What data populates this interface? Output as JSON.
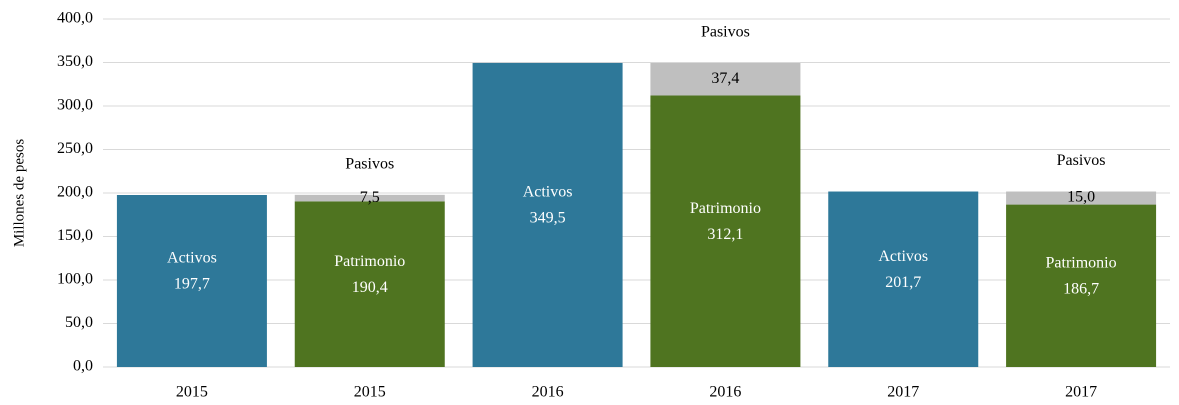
{
  "chart_data": {
    "type": "stacked_bar",
    "ylabel": "Millones  de pesos",
    "categories": [
      "2015",
      "2015",
      "2016",
      "2016",
      "2017",
      "2017"
    ],
    "series": [
      {
        "name": "Activos",
        "color": "#2e7899",
        "values": [
          197.7,
          null,
          349.5,
          null,
          201.7,
          null
        ],
        "value_labels": [
          "197,7",
          null,
          "349,5",
          null,
          "201,7",
          null
        ]
      },
      {
        "name": "Patrimonio",
        "color": "#4f7420",
        "values": [
          null,
          190.4,
          null,
          312.1,
          null,
          186.7
        ],
        "value_labels": [
          null,
          "190,4",
          null,
          "312,1",
          null,
          "186,7"
        ]
      },
      {
        "name": "Pasivos",
        "color": "#bfbfbf",
        "values": [
          null,
          7.5,
          null,
          37.4,
          null,
          15.0
        ],
        "value_labels": [
          null,
          "7,5",
          null,
          "37,4",
          null,
          "15,0"
        ]
      }
    ],
    "ylim": [
      0,
      400
    ],
    "yticks": [
      {
        "value": 0,
        "label": "0,0"
      },
      {
        "value": 50,
        "label": "50,0"
      },
      {
        "value": 100,
        "label": "100,0"
      },
      {
        "value": 150,
        "label": "150,0"
      },
      {
        "value": 200,
        "label": "200,0"
      },
      {
        "value": 250,
        "label": "250,0"
      },
      {
        "value": 300,
        "label": "300,0"
      },
      {
        "value": 350,
        "label": "350,0"
      },
      {
        "value": 400,
        "label": "400,0"
      }
    ],
    "grid": true
  }
}
